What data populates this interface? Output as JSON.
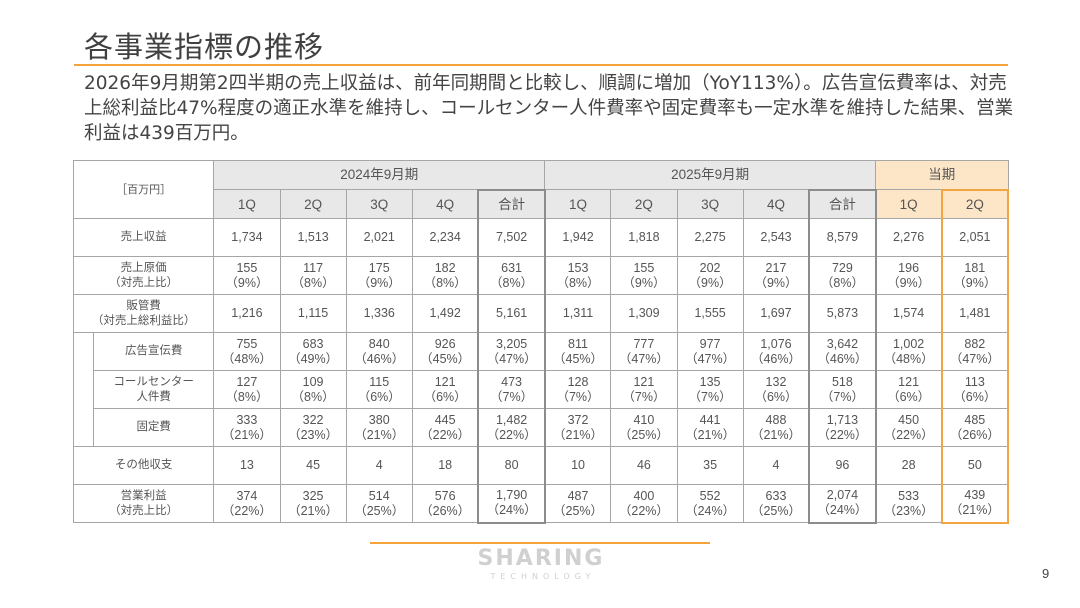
{
  "slide": {
    "title": "各事業指標の推移",
    "summary": "2026年9月期第2四半期の売上収益は、前年同期間と比較し、順調に増加（YoY113%）。広告宣伝費率は、対売上総利益比47%程度の適正水準を維持し、コールセンター人件費率や固定費率も一定水準を維持した結果、営業利益は439百万円。",
    "page_number": "9"
  },
  "table": {
    "unit": "［百万円］",
    "groups": [
      "2024年9月期",
      "2025年9月期",
      "当期"
    ],
    "subheaders": [
      "1Q",
      "2Q",
      "3Q",
      "4Q",
      "合計",
      "1Q",
      "2Q",
      "3Q",
      "4Q",
      "合計",
      "1Q",
      "2Q"
    ],
    "rows": [
      {
        "label": "売上収益",
        "values": [
          "1,734",
          "1,513",
          "2,021",
          "2,234",
          "7,502",
          "1,942",
          "1,818",
          "2,275",
          "2,543",
          "8,579",
          "2,276",
          "2,051"
        ]
      },
      {
        "label": "売上原価\n（対売上比）",
        "values": [
          "155\n（9%）",
          "117\n（8%）",
          "175\n（9%）",
          "182\n（8%）",
          "631\n（8%）",
          "153\n（8%）",
          "155\n（9%）",
          "202\n（9%）",
          "217\n（9%）",
          "729\n（8%）",
          "196\n（9%）",
          "181\n（9%）"
        ]
      },
      {
        "label": "販管費\n（対売上総利益比）",
        "values": [
          "1,216",
          "1,115",
          "1,336",
          "1,492",
          "5,161",
          "1,311",
          "1,309",
          "1,555",
          "1,697",
          "5,873",
          "1,574",
          "1,481"
        ]
      },
      {
        "label": "広告宣伝費",
        "values": [
          "755\n（48%）",
          "683\n（49%）",
          "840\n（46%）",
          "926\n（45%）",
          "3,205\n（47%）",
          "811\n（45%）",
          "777\n（47%）",
          "977\n（47%）",
          "1,076\n（46%）",
          "3,642\n（46%）",
          "1,002\n（48%）",
          "882\n（47%）"
        ]
      },
      {
        "label": "コールセンター\n人件費",
        "values": [
          "127\n（8%）",
          "109\n（8%）",
          "115\n（6%）",
          "121\n（6%）",
          "473\n（7%）",
          "128\n（7%）",
          "121\n（7%）",
          "135\n（7%）",
          "132\n（6%）",
          "518\n（7%）",
          "121\n（6%）",
          "113\n（6%）"
        ]
      },
      {
        "label": "固定費",
        "values": [
          "333\n（21%）",
          "322\n（23%）",
          "380\n（21%）",
          "445\n（22%）",
          "1,482\n（22%）",
          "372\n（21%）",
          "410\n（25%）",
          "441\n（21%）",
          "488\n（21%）",
          "1,713\n（22%）",
          "450\n（22%）",
          "485\n（26%）"
        ]
      },
      {
        "label": "その他収支",
        "values": [
          "13",
          "45",
          "4",
          "18",
          "80",
          "10",
          "46",
          "35",
          "4",
          "96",
          "28",
          "50"
        ]
      },
      {
        "label": "営業利益\n（対売上比）",
        "values": [
          "374\n（22%）",
          "325\n（21%）",
          "514\n（25%）",
          "576\n（26%）",
          "1,790\n（24%）",
          "487\n（25%）",
          "400\n（22%）",
          "552\n（24%）",
          "633\n（25%）",
          "2,074\n（24%）",
          "533\n（23%）",
          "439\n（21%）"
        ]
      }
    ]
  },
  "logo": {
    "main": "SHARING",
    "sub": "TECHNOLOGY"
  },
  "colors": {
    "accent": "#f5a43c",
    "header_bg": "#e8e8e8",
    "current_header_bg": "#fde6c7"
  }
}
